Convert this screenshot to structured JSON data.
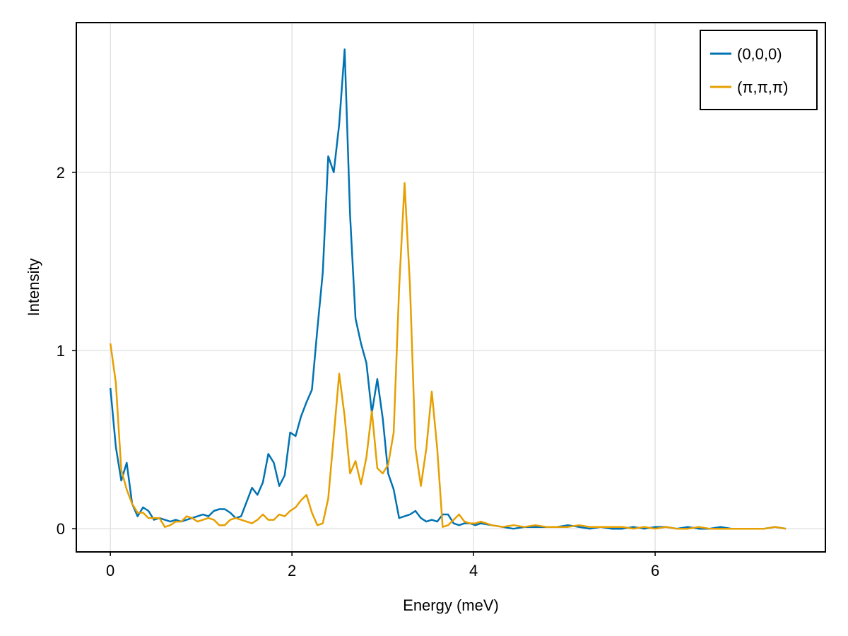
{
  "chart_data": {
    "type": "line",
    "xlabel": "Energy (meV)",
    "ylabel": "Intensity",
    "xlim": [
      -0.375,
      7.875
    ],
    "ylim": [
      -0.13,
      2.84
    ],
    "xticks": [
      0,
      2,
      4,
      6
    ],
    "xtick_labels": [
      "0",
      "2",
      "4",
      "6"
    ],
    "yticks": [
      0,
      1,
      2
    ],
    "ytick_labels": [
      "0",
      "1",
      "2"
    ],
    "grid": true,
    "legend_position": "top-right",
    "series": [
      {
        "name": "(0,0,0)",
        "color": "#0072b2",
        "x": [
          0.0,
          0.06,
          0.12,
          0.18,
          0.24,
          0.3,
          0.36,
          0.42,
          0.48,
          0.54,
          0.6,
          0.66,
          0.72,
          0.78,
          0.84,
          0.9,
          0.96,
          1.02,
          1.08,
          1.14,
          1.2,
          1.26,
          1.32,
          1.38,
          1.44,
          1.5,
          1.56,
          1.62,
          1.68,
          1.74,
          1.8,
          1.86,
          1.92,
          1.98,
          2.04,
          2.1,
          2.16,
          2.22,
          2.28,
          2.34,
          2.4,
          2.46,
          2.52,
          2.58,
          2.64,
          2.7,
          2.76,
          2.82,
          2.88,
          2.94,
          3.0,
          3.06,
          3.12,
          3.18,
          3.24,
          3.3,
          3.36,
          3.42,
          3.48,
          3.54,
          3.6,
          3.66,
          3.72,
          3.78,
          3.84,
          3.9,
          3.96,
          4.02,
          4.08,
          4.2,
          4.32,
          4.44,
          4.56,
          4.68,
          4.8,
          4.92,
          5.04,
          5.16,
          5.28,
          5.4,
          5.52,
          5.64,
          5.76,
          5.88,
          6.0,
          6.12,
          6.24,
          6.36,
          6.48,
          6.6,
          6.72,
          6.84,
          6.96,
          7.08,
          7.2,
          7.32,
          7.44
        ],
        "y": [
          0.79,
          0.46,
          0.27,
          0.37,
          0.14,
          0.07,
          0.12,
          0.1,
          0.05,
          0.06,
          0.05,
          0.04,
          0.05,
          0.04,
          0.05,
          0.06,
          0.07,
          0.08,
          0.07,
          0.1,
          0.11,
          0.11,
          0.09,
          0.06,
          0.07,
          0.15,
          0.23,
          0.19,
          0.26,
          0.42,
          0.37,
          0.24,
          0.3,
          0.54,
          0.52,
          0.63,
          0.71,
          0.78,
          1.12,
          1.44,
          2.09,
          2.0,
          2.27,
          2.69,
          1.76,
          1.18,
          1.04,
          0.93,
          0.65,
          0.84,
          0.62,
          0.31,
          0.22,
          0.06,
          0.07,
          0.08,
          0.1,
          0.06,
          0.04,
          0.05,
          0.04,
          0.08,
          0.08,
          0.03,
          0.02,
          0.03,
          0.03,
          0.02,
          0.03,
          0.02,
          0.01,
          0.0,
          0.01,
          0.01,
          0.01,
          0.01,
          0.02,
          0.01,
          0.0,
          0.01,
          0.0,
          0.0,
          0.01,
          0.0,
          0.01,
          0.01,
          0.0,
          0.01,
          0.0,
          0.0,
          0.01,
          0.0,
          0.0,
          0.0,
          0.0,
          0.01,
          0.0
        ]
      },
      {
        "name": "(π,π,π)",
        "color": "#e69f00",
        "x": [
          0.0,
          0.06,
          0.12,
          0.18,
          0.24,
          0.3,
          0.36,
          0.42,
          0.48,
          0.54,
          0.6,
          0.66,
          0.72,
          0.78,
          0.84,
          0.9,
          0.96,
          1.02,
          1.08,
          1.14,
          1.2,
          1.26,
          1.32,
          1.38,
          1.44,
          1.5,
          1.56,
          1.62,
          1.68,
          1.74,
          1.8,
          1.86,
          1.92,
          1.98,
          2.04,
          2.1,
          2.16,
          2.22,
          2.28,
          2.34,
          2.4,
          2.46,
          2.52,
          2.58,
          2.64,
          2.7,
          2.76,
          2.82,
          2.88,
          2.94,
          3.0,
          3.06,
          3.12,
          3.18,
          3.24,
          3.3,
          3.36,
          3.42,
          3.48,
          3.54,
          3.6,
          3.66,
          3.72,
          3.78,
          3.84,
          3.9,
          3.96,
          4.02,
          4.08,
          4.14,
          4.2,
          4.32,
          4.44,
          4.56,
          4.68,
          4.8,
          4.92,
          5.04,
          5.16,
          5.28,
          5.4,
          5.52,
          5.64,
          5.76,
          5.88,
          6.0,
          6.12,
          6.24,
          6.36,
          6.48,
          6.6,
          6.72,
          6.84,
          6.96,
          7.08,
          7.2,
          7.32,
          7.44
        ],
        "y": [
          1.04,
          0.82,
          0.33,
          0.22,
          0.14,
          0.09,
          0.09,
          0.06,
          0.06,
          0.06,
          0.01,
          0.02,
          0.04,
          0.04,
          0.07,
          0.06,
          0.04,
          0.05,
          0.06,
          0.05,
          0.02,
          0.02,
          0.05,
          0.06,
          0.05,
          0.04,
          0.03,
          0.05,
          0.08,
          0.05,
          0.05,
          0.08,
          0.07,
          0.1,
          0.12,
          0.16,
          0.19,
          0.09,
          0.02,
          0.03,
          0.17,
          0.52,
          0.87,
          0.63,
          0.31,
          0.38,
          0.25,
          0.4,
          0.66,
          0.34,
          0.31,
          0.36,
          0.54,
          1.35,
          1.94,
          1.36,
          0.45,
          0.24,
          0.45,
          0.77,
          0.45,
          0.01,
          0.02,
          0.05,
          0.08,
          0.04,
          0.03,
          0.03,
          0.04,
          0.03,
          0.02,
          0.01,
          0.02,
          0.01,
          0.02,
          0.01,
          0.01,
          0.01,
          0.02,
          0.01,
          0.01,
          0.01,
          0.01,
          0.0,
          0.01,
          0.0,
          0.01,
          0.0,
          0.0,
          0.01,
          0.0,
          0.0,
          0.0,
          0.0,
          0.0,
          0.0,
          0.01,
          0.0
        ]
      }
    ]
  }
}
